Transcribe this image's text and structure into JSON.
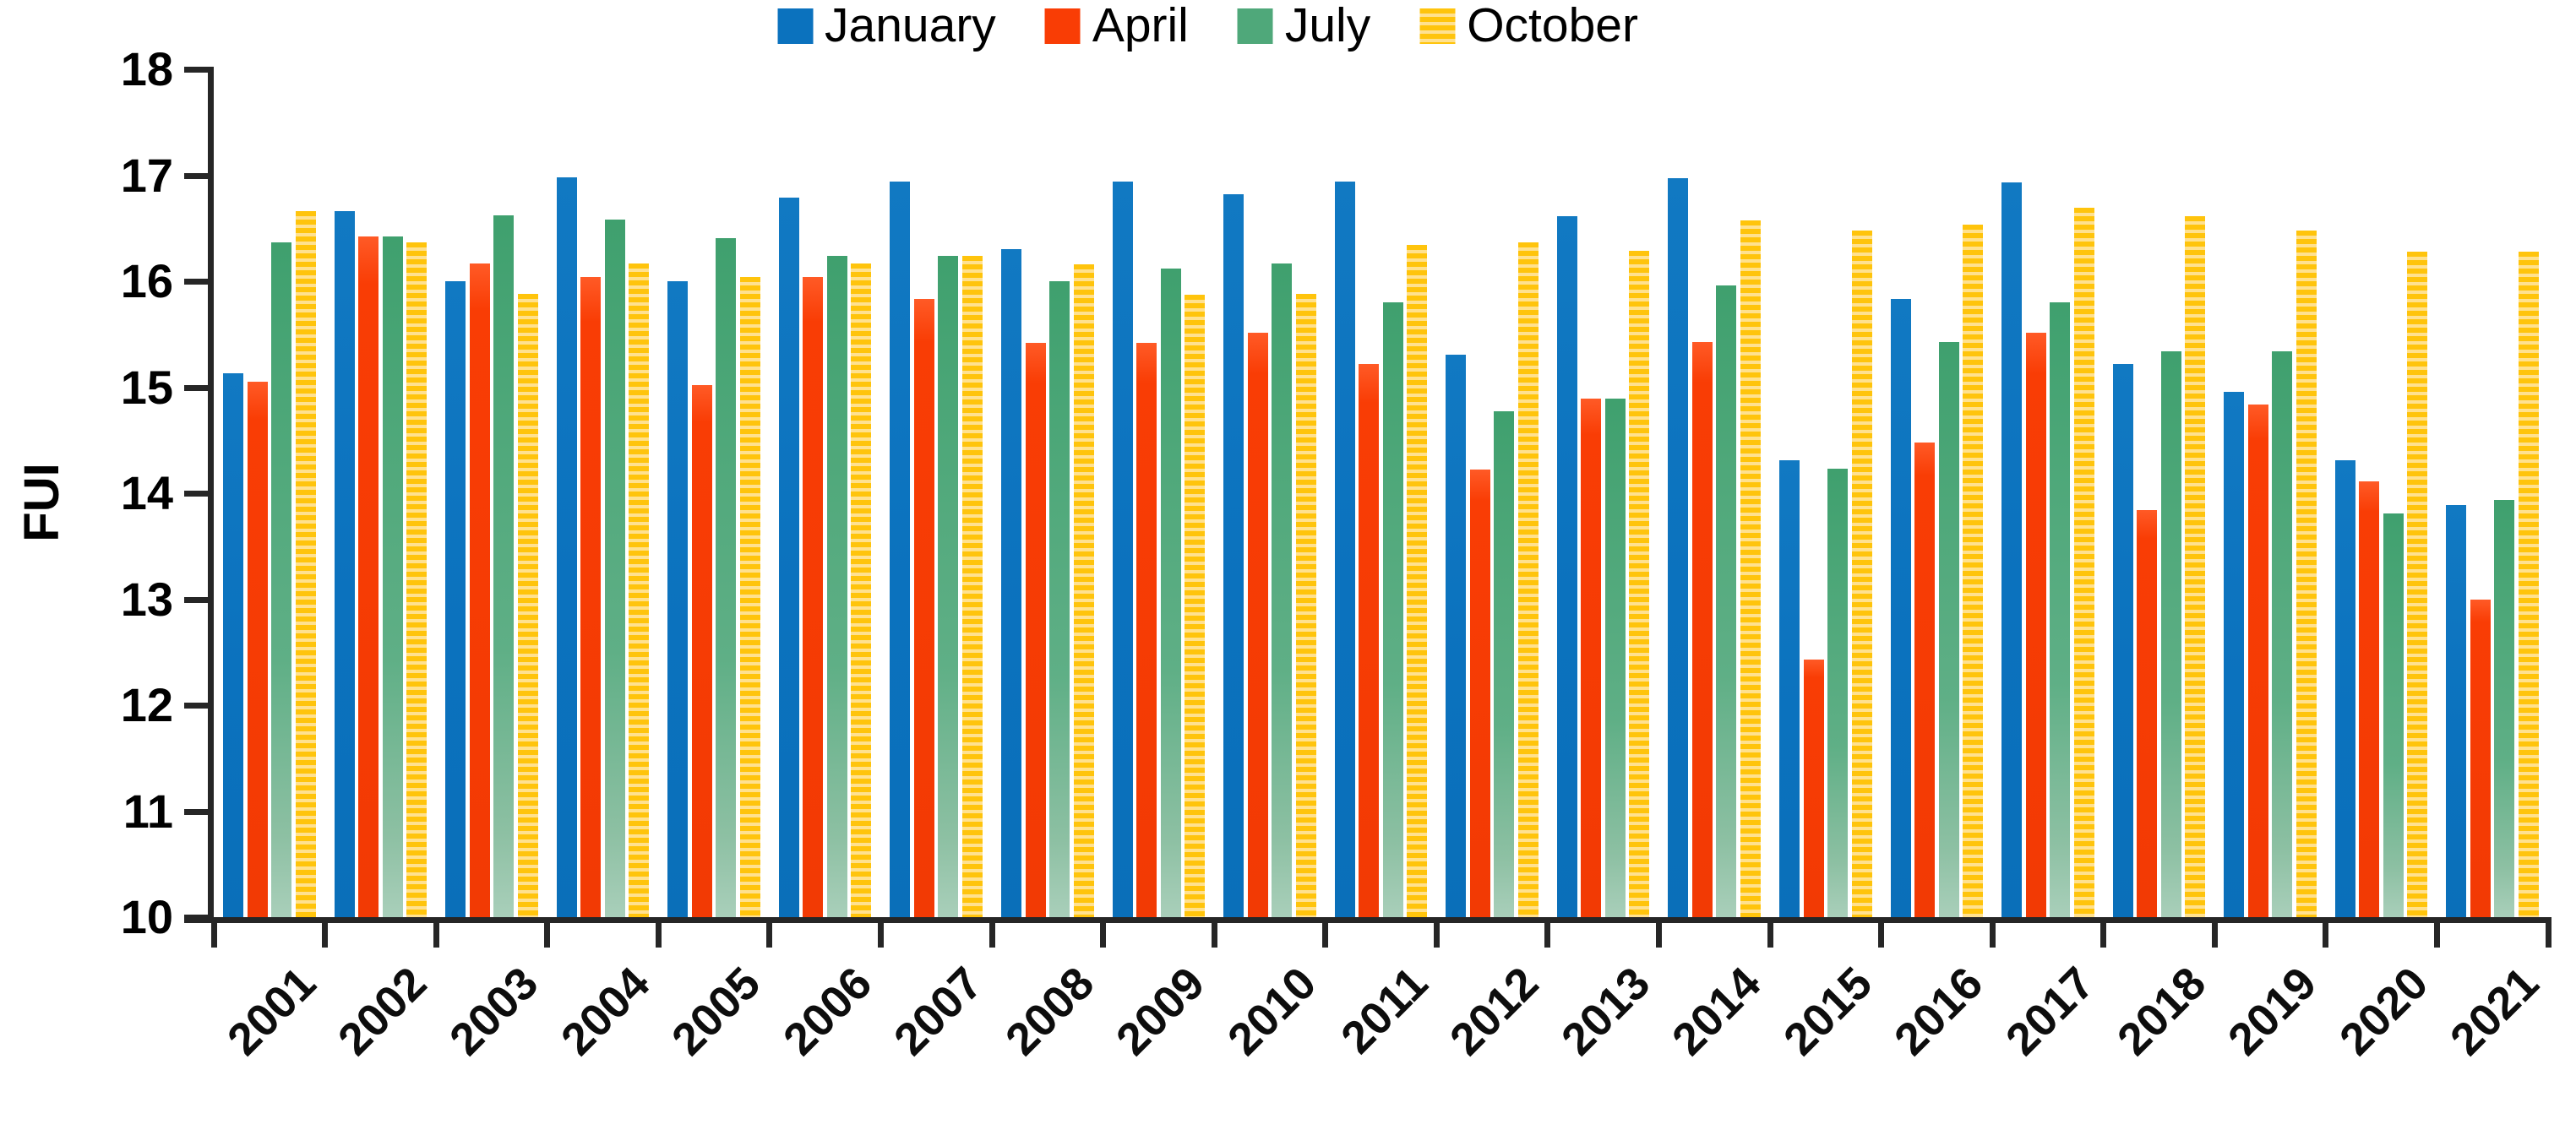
{
  "chart_data": {
    "type": "bar",
    "title": "",
    "xlabel": "",
    "ylabel": "FUI",
    "ylim": [
      10,
      18
    ],
    "yticks": [
      10,
      11,
      12,
      13,
      14,
      15,
      16,
      17,
      18
    ],
    "grid": false,
    "legend_position": "top",
    "categories": [
      "2001",
      "2002",
      "2003",
      "2004",
      "2005",
      "2006",
      "2007",
      "2008",
      "2009",
      "2010",
      "2011",
      "2012",
      "2013",
      "2014",
      "2015",
      "2016",
      "2017",
      "2018",
      "2019",
      "2020",
      "2021"
    ],
    "series": [
      {
        "name": "January",
        "fill": "solid",
        "color": "#0B72BE",
        "values": [
          15.13,
          16.66,
          16.0,
          16.98,
          16.0,
          16.79,
          16.94,
          16.3,
          16.94,
          16.82,
          16.94,
          15.31,
          16.61,
          16.97,
          14.31,
          15.83,
          16.93,
          15.22,
          14.96,
          14.31,
          13.89
        ]
      },
      {
        "name": "April",
        "fill": "solid",
        "color": "#F93D05",
        "values": [
          15.05,
          16.42,
          16.17,
          16.04,
          15.02,
          16.04,
          15.83,
          15.42,
          15.42,
          15.51,
          15.22,
          14.22,
          14.89,
          15.43,
          12.43,
          14.48,
          15.51,
          13.84,
          14.84,
          14.11,
          13.0
        ]
      },
      {
        "name": "July",
        "fill": "gradient",
        "color": "#4FA87A",
        "color_bottom": "#A9CFBA",
        "values": [
          16.37,
          16.42,
          16.62,
          16.58,
          16.41,
          16.24,
          16.24,
          16.0,
          16.12,
          16.17,
          15.8,
          14.77,
          14.89,
          15.96,
          14.23,
          15.43,
          15.8,
          15.34,
          15.34,
          13.81,
          13.94
        ]
      },
      {
        "name": "October",
        "fill": "stripes",
        "color": "#FFC40C",
        "stripe_color": "#FFE18F",
        "values": [
          16.66,
          16.37,
          15.88,
          16.17,
          16.04,
          16.17,
          16.24,
          16.16,
          15.87,
          15.88,
          16.34,
          16.37,
          16.29,
          16.57,
          16.48,
          16.53,
          16.69,
          16.61,
          16.48,
          16.28,
          16.28
        ]
      }
    ],
    "axis_color": "#262626"
  }
}
